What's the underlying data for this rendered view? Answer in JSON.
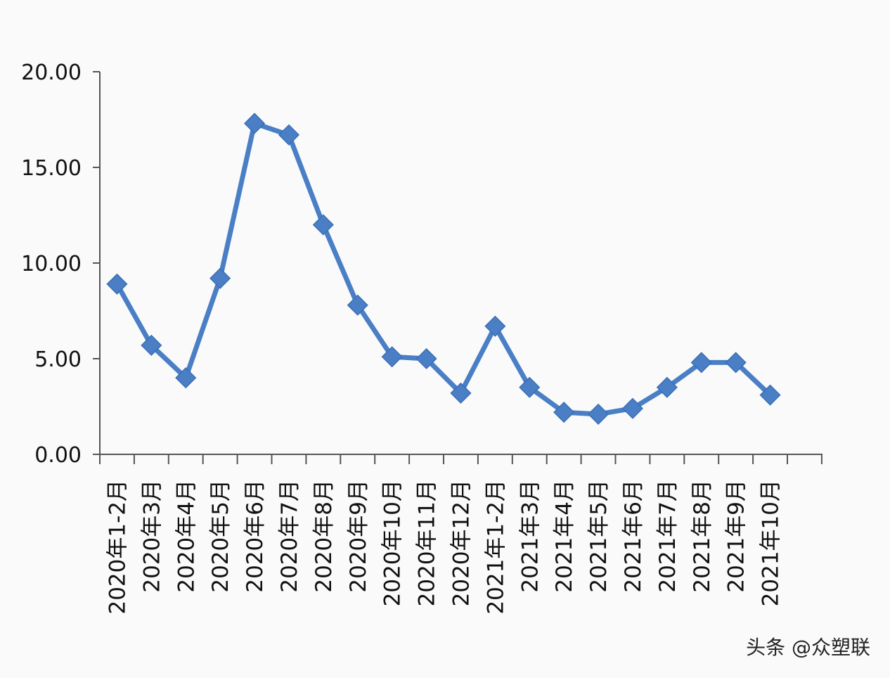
{
  "chart_data": {
    "type": "line",
    "title": "",
    "xlabel": "",
    "ylabel": "",
    "categories": [
      "2020年1-2月",
      "2020年3月",
      "2020年4月",
      "2020年5月",
      "2020年6月",
      "2020年7月",
      "2020年8月",
      "2020年9月",
      "2020年10月",
      "2020年11月",
      "2020年12月",
      "2021年1-2月",
      "2021年3月",
      "2021年4月",
      "2021年5月",
      "2021年6月",
      "2021年7月",
      "2021年8月",
      "2021年9月",
      "2021年10月"
    ],
    "series": [
      {
        "values": [
          8.9,
          5.7,
          4.0,
          9.2,
          17.3,
          16.7,
          12.0,
          7.8,
          5.1,
          5.0,
          3.2,
          6.7,
          3.5,
          2.2,
          2.1,
          2.4,
          3.5,
          4.8,
          4.8,
          3.1
        ]
      }
    ],
    "ylim": [
      0,
      20
    ],
    "yticks": [
      "0.00",
      "5.00",
      "10.00",
      "15.00",
      "20.00"
    ],
    "grid": false,
    "legend": "none",
    "colors": {
      "line": "#4a7fc6",
      "axis": "#555555"
    }
  },
  "watermark": "头条 @众塑联"
}
